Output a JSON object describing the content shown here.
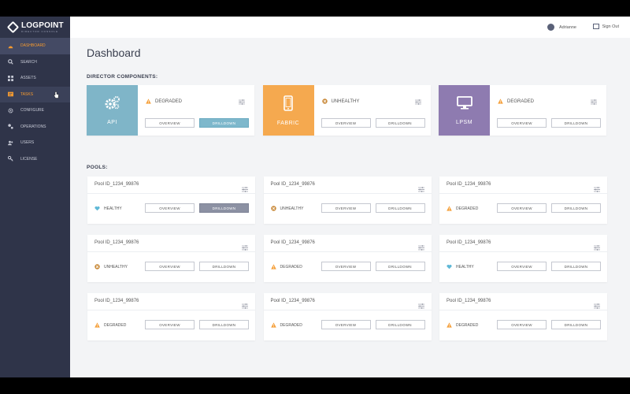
{
  "brand": {
    "title": "LOGPOINT",
    "subtitle": "DIRECTOR CONSOLE"
  },
  "nav": [
    {
      "label": "DASHBOARD",
      "icon": "dashboard-icon",
      "state": "active"
    },
    {
      "label": "SEARCH",
      "icon": "search-icon",
      "state": ""
    },
    {
      "label": "ASSETS",
      "icon": "grid-icon",
      "state": ""
    },
    {
      "label": "TASKS",
      "icon": "tasks-icon",
      "state": "hover"
    },
    {
      "label": "CONFIGURE",
      "icon": "gear-icon",
      "state": ""
    },
    {
      "label": "OPERATIONS",
      "icon": "operations-icon",
      "state": ""
    },
    {
      "label": "USERS",
      "icon": "users-icon",
      "state": ""
    },
    {
      "label": "LICENSE",
      "icon": "key-icon",
      "state": ""
    }
  ],
  "topbar": {
    "user": "Adrianne",
    "signout": "Sign Out"
  },
  "page": {
    "title": "Dashboard",
    "director_label": "DIRECTOR COMPONENTS:",
    "pools_label": "POOLS:"
  },
  "colors": {
    "accent": "#f59a2f",
    "api": "#7fb5c8",
    "fabric": "#f5a94f",
    "lpsm": "#8e7bb0",
    "healthy": "#5fb8d6",
    "unhealthy": "#c98a3a",
    "degraded": "#f5a03b"
  },
  "buttons": {
    "overview": "OVERVIEW",
    "drilldown": "DRILLDOWN"
  },
  "components": [
    {
      "name": "API",
      "icon": "gears-icon",
      "status": "DEGRADED",
      "status_type": "degraded",
      "drill_active": true
    },
    {
      "name": "FABRIC",
      "icon": "mobile-icon",
      "status": "UNHEALTHY",
      "status_type": "unhealthy",
      "drill_active": false
    },
    {
      "name": "LPSM",
      "icon": "monitor-icon",
      "status": "DEGRADED",
      "status_type": "degraded",
      "drill_active": false
    }
  ],
  "pools": [
    {
      "id": "Pool ID_1234_99876",
      "status": "HEALTHY",
      "status_type": "healthy",
      "drill_active": true
    },
    {
      "id": "Pool ID_1234_99876",
      "status": "UNHEALTHY",
      "status_type": "unhealthy",
      "drill_active": false
    },
    {
      "id": "Pool ID_1234_99876",
      "status": "DEGRADED",
      "status_type": "degraded",
      "drill_active": false
    },
    {
      "id": "Pool ID_1234_99876",
      "status": "UNHEALTHY",
      "status_type": "unhealthy",
      "drill_active": false
    },
    {
      "id": "Pool ID_1234_99876",
      "status": "DEGRADED",
      "status_type": "degraded",
      "drill_active": false
    },
    {
      "id": "Pool ID_1234_99876",
      "status": "HEALTHY",
      "status_type": "healthy",
      "drill_active": false
    },
    {
      "id": "Pool ID_1234_99876",
      "status": "DEGRADED",
      "status_type": "degraded",
      "drill_active": false
    },
    {
      "id": "Pool ID_1234_99876",
      "status": "DEGRADED",
      "status_type": "degraded",
      "drill_active": false
    },
    {
      "id": "Pool ID_1234_99876",
      "status": "DEGRADED",
      "status_type": "degraded",
      "drill_active": false
    }
  ]
}
